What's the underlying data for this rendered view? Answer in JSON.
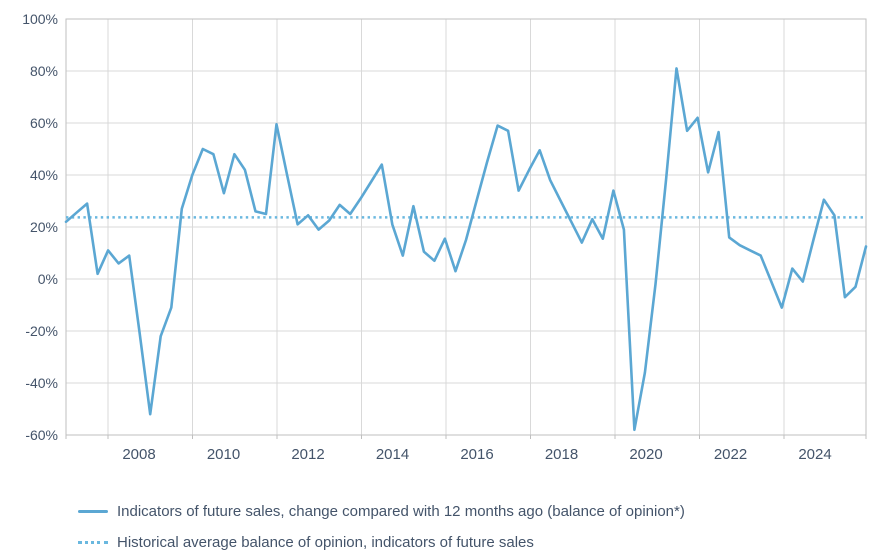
{
  "chart_data": {
    "type": "line",
    "title": "",
    "grid": true,
    "legend_position": "bottom-left",
    "ylim": [
      -60,
      100
    ],
    "y_tick_labels": [
      "100%",
      "80%",
      "60%",
      "40%",
      "20%",
      "0%",
      "-20%",
      "-40%",
      "-60%"
    ],
    "y_tick_values": [
      100,
      80,
      60,
      40,
      20,
      0,
      -20,
      -40,
      -60
    ],
    "x_tick_labels": [
      "2008",
      "2010",
      "2012",
      "2014",
      "2016",
      "2018",
      "2020",
      "2022",
      "2024"
    ],
    "x_start": "2006-Q3",
    "x_frequency": "quarterly",
    "series": [
      {
        "name": "Indicators of future sales, change compared with 12 months ago (balance of opinion*)",
        "style": "solid",
        "color": "#5BA7D3",
        "values": [
          22,
          25.5,
          29,
          2,
          11,
          6,
          9,
          -21,
          -52,
          -22,
          -11,
          27,
          40,
          50,
          48,
          33,
          48,
          42,
          26,
          25,
          59.5,
          40,
          21,
          24.5,
          19,
          22.5,
          28.5,
          25,
          31,
          37.5,
          44,
          21,
          9,
          28,
          10.5,
          7,
          15.5,
          3,
          15,
          30,
          45,
          59,
          57,
          34,
          42,
          49.5,
          38,
          30,
          22,
          14,
          23,
          15.5,
          34,
          19,
          -58,
          -36,
          -2,
          38,
          81,
          57,
          62,
          41,
          56.5,
          16,
          13,
          11,
          9,
          -1,
          -11,
          4,
          -1,
          15,
          30.5,
          24.5,
          -7,
          -3,
          12.5
        ]
      },
      {
        "name": "Historical average balance of opinion, indicators of future sales",
        "style": "dotted",
        "color": "#6AB8DF",
        "value": 23.7
      }
    ]
  },
  "colors": {
    "axis_text": "#44546A",
    "gridline": "#D9D9D9",
    "frame": "#BFBFBF",
    "background": "#FFFFFF"
  }
}
